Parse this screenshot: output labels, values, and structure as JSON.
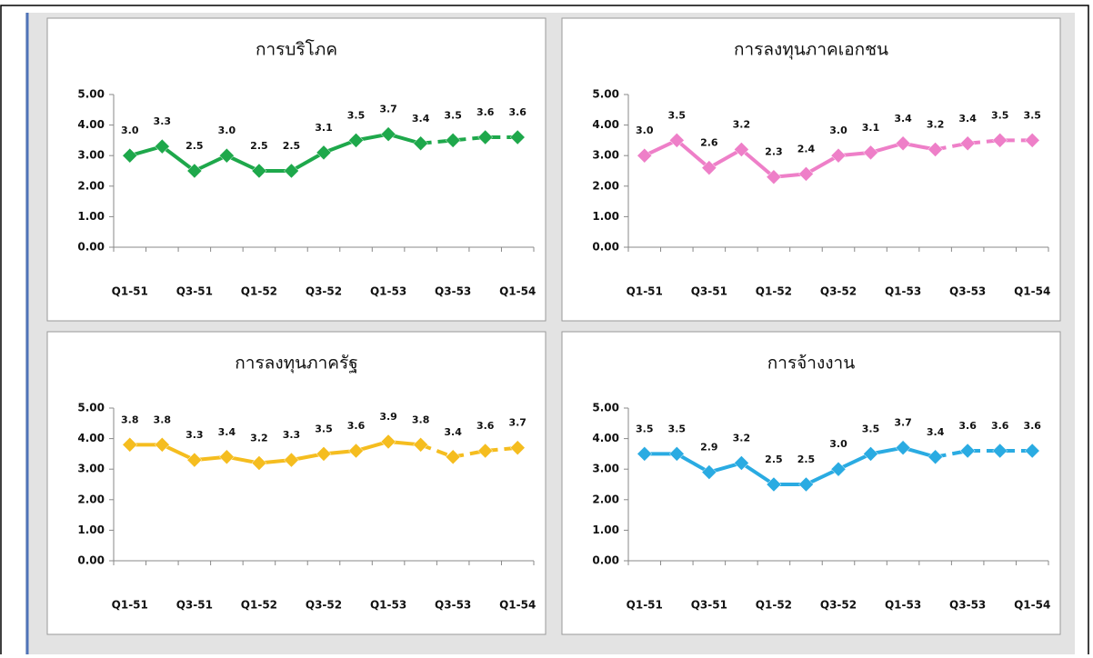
{
  "chart_data": [
    {
      "type": "line",
      "title": "การบริโภค",
      "categories": [
        "Q1-51",
        null,
        "Q3-51",
        null,
        "Q1-52",
        null,
        "Q3-52",
        null,
        "Q1-53",
        null,
        "Q3-53",
        null,
        "Q1-54"
      ],
      "series": [
        {
          "color": "#1ea84b",
          "values": [
            3.0,
            3.3,
            2.5,
            3.0,
            2.5,
            2.5,
            3.1,
            3.5,
            3.7,
            3.4,
            3.5,
            3.6,
            3.6
          ],
          "value_labels": [
            "3.0",
            "3.3",
            "2.5",
            "3.0",
            "2.5",
            "2.5",
            "3.1",
            "3.5",
            "3.7",
            "3.4",
            "3.5",
            "3.6",
            "3.6"
          ],
          "dashed_from": 9
        }
      ],
      "ylim": [
        0,
        5
      ],
      "yticks": [
        {
          "value": 0,
          "label": "0.00"
        },
        {
          "value": 1,
          "label": "1.00"
        },
        {
          "value": 2,
          "label": "2.00"
        },
        {
          "value": 3,
          "label": "3.00"
        },
        {
          "value": 4,
          "label": "4.00"
        },
        {
          "value": 5,
          "label": "5.00"
        }
      ]
    },
    {
      "type": "line",
      "title": "การลงทุนภาคเอกชน",
      "categories": [
        "Q1-51",
        null,
        "Q3-51",
        null,
        "Q1-52",
        null,
        "Q3-52",
        null,
        "Q1-53",
        null,
        "Q3-53",
        null,
        "Q1-54"
      ],
      "series": [
        {
          "color": "#ee7fc8",
          "values": [
            3.0,
            3.5,
            2.6,
            3.2,
            2.3,
            2.4,
            3.0,
            3.1,
            3.4,
            3.2,
            3.4,
            3.5,
            3.5
          ],
          "value_labels": [
            "3.0",
            "3.5",
            "2.6",
            "3.2",
            "2.3",
            "2.4",
            "3.0",
            "3.1",
            "3.4",
            "3.2",
            "3.4",
            "3.5",
            "3.5"
          ],
          "dashed_from": 9
        }
      ],
      "ylim": [
        0,
        5
      ],
      "yticks": [
        {
          "value": 0,
          "label": "0.00"
        },
        {
          "value": 1,
          "label": "1.00"
        },
        {
          "value": 2,
          "label": "2.00"
        },
        {
          "value": 3,
          "label": "3.00"
        },
        {
          "value": 4,
          "label": "4.00"
        },
        {
          "value": 5,
          "label": "5.00"
        }
      ]
    },
    {
      "type": "line",
      "title": "การลงทุนภาครัฐ",
      "categories": [
        "Q1-51",
        null,
        "Q3-51",
        null,
        "Q1-52",
        null,
        "Q3-52",
        null,
        "Q1-53",
        null,
        "Q3-53",
        null,
        "Q1-54"
      ],
      "series": [
        {
          "color": "#f5bd1f",
          "values": [
            3.8,
            3.8,
            3.3,
            3.4,
            3.2,
            3.3,
            3.5,
            3.6,
            3.9,
            3.8,
            3.4,
            3.6,
            3.7
          ],
          "value_labels": [
            "3.8",
            "3.8",
            "3.3",
            "3.4",
            "3.2",
            "3.3",
            "3.5",
            "3.6",
            "3.9",
            "3.8",
            "3.4",
            "3.6",
            "3.7"
          ],
          "dashed_from": 9
        }
      ],
      "ylim": [
        0,
        5
      ],
      "yticks": [
        {
          "value": 0,
          "label": "0.00"
        },
        {
          "value": 1,
          "label": "1.00"
        },
        {
          "value": 2,
          "label": "2.00"
        },
        {
          "value": 3,
          "label": "3.00"
        },
        {
          "value": 4,
          "label": "4.00"
        },
        {
          "value": 5,
          "label": "5.00"
        }
      ]
    },
    {
      "type": "line",
      "title": "การจ้างงาน",
      "categories": [
        "Q1-51",
        null,
        "Q3-51",
        null,
        "Q1-52",
        null,
        "Q3-52",
        null,
        "Q1-53",
        null,
        "Q3-53",
        null,
        "Q1-54"
      ],
      "series": [
        {
          "color": "#2aabe2",
          "values": [
            3.5,
            3.5,
            2.9,
            3.2,
            2.5,
            2.5,
            3.0,
            3.5,
            3.7,
            3.4,
            3.6,
            3.6,
            3.6
          ],
          "value_labels": [
            "3.5",
            "3.5",
            "2.9",
            "3.2",
            "2.5",
            "2.5",
            "3.0",
            "3.5",
            "3.7",
            "3.4",
            "3.6",
            "3.6",
            "3.6"
          ],
          "dashed_from": 9
        }
      ],
      "ylim": [
        0,
        5
      ],
      "yticks": [
        {
          "value": 0,
          "label": "0.00"
        },
        {
          "value": 1,
          "label": "1.00"
        },
        {
          "value": 2,
          "label": "2.00"
        },
        {
          "value": 3,
          "label": "3.00"
        },
        {
          "value": 4,
          "label": "4.00"
        },
        {
          "value": 5,
          "label": "5.00"
        }
      ]
    }
  ]
}
